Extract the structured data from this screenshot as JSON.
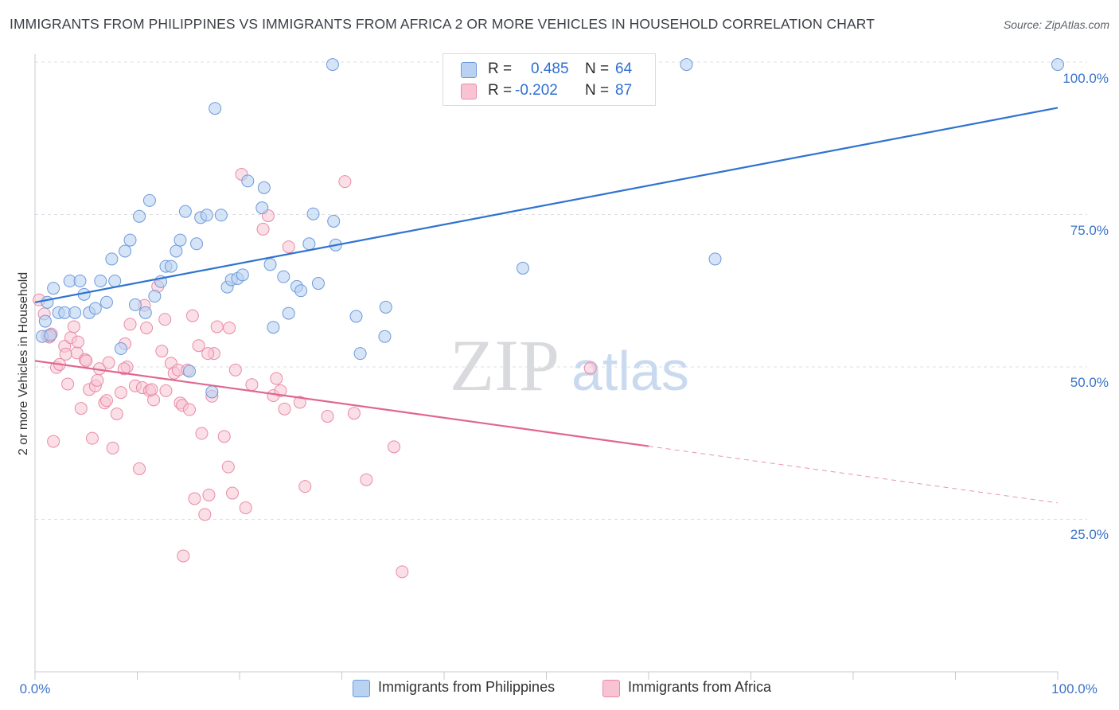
{
  "title": "IMMIGRANTS FROM PHILIPPINES VS IMMIGRANTS FROM AFRICA 2 OR MORE VEHICLES IN HOUSEHOLD CORRELATION CHART",
  "source": "Source: ZipAtlas.com",
  "watermark": {
    "zip": "ZIP",
    "atlas": "atlas"
  },
  "legend": {
    "philippines": {
      "r_label": "R =",
      "r_value": "0.485",
      "n_label": "N =",
      "n_value": "64"
    },
    "africa": {
      "r_label": "R =",
      "r_value": "-0.202",
      "n_label": "N =",
      "n_value": "87"
    }
  },
  "colors": {
    "philippines_fill": "#b9d2f2",
    "philippines_stroke": "#6e9ad8",
    "philippines_line": "#2f73d0",
    "africa_fill": "#f8c4d4",
    "africa_stroke": "#e88aa6",
    "africa_line": "#e0668f",
    "axis_label": "#3b73c8",
    "grid": "#dcdfe4"
  },
  "chart_data": {
    "type": "scatter",
    "title": "IMMIGRANTS FROM PHILIPPINES VS IMMIGRANTS FROM AFRICA 2 OR MORE VEHICLES IN HOUSEHOLD CORRELATION CHART",
    "xlabel": "",
    "ylabel": "2 or more Vehicles in Household",
    "xlim": [
      0,
      100
    ],
    "ylim": [
      0,
      105
    ],
    "x_tick_labels": [
      "0.0%",
      "100.0%"
    ],
    "y_ticks": [
      25,
      50,
      75,
      100
    ],
    "y_tick_labels": [
      "25.0%",
      "50.0%",
      "75.0%",
      "100.0%"
    ],
    "grid": "horizontal dashed",
    "legend_position": "top-center",
    "series": [
      {
        "name": "Immigrants from Philippines",
        "color": "#b9d2f2",
        "points": [
          [
            0.7,
            55.0
          ],
          [
            1.0,
            57.5
          ],
          [
            1.2,
            60.6
          ],
          [
            1.5,
            55.2
          ],
          [
            1.8,
            62.9
          ],
          [
            2.3,
            58.9
          ],
          [
            2.9,
            58.9
          ],
          [
            3.4,
            64.1
          ],
          [
            3.9,
            58.9
          ],
          [
            4.4,
            64.1
          ],
          [
            4.8,
            61.9
          ],
          [
            5.3,
            58.9
          ],
          [
            5.9,
            59.6
          ],
          [
            6.4,
            64.1
          ],
          [
            7.0,
            60.6
          ],
          [
            7.5,
            67.7
          ],
          [
            7.8,
            64.1
          ],
          [
            8.4,
            53.0
          ],
          [
            8.8,
            69.0
          ],
          [
            9.3,
            70.8
          ],
          [
            9.8,
            60.2
          ],
          [
            10.2,
            74.7
          ],
          [
            10.8,
            58.9
          ],
          [
            11.2,
            77.3
          ],
          [
            11.7,
            61.6
          ],
          [
            12.3,
            64.0
          ],
          [
            12.8,
            66.5
          ],
          [
            13.3,
            66.5
          ],
          [
            13.8,
            69.0
          ],
          [
            14.2,
            70.8
          ],
          [
            14.7,
            75.5
          ],
          [
            15.1,
            49.3
          ],
          [
            15.8,
            70.2
          ],
          [
            16.2,
            74.5
          ],
          [
            16.8,
            74.9
          ],
          [
            17.3,
            45.9
          ],
          [
            17.6,
            92.4
          ],
          [
            18.2,
            74.9
          ],
          [
            18.8,
            63.1
          ],
          [
            19.2,
            64.3
          ],
          [
            19.8,
            64.5
          ],
          [
            20.3,
            65.1
          ],
          [
            20.8,
            80.5
          ],
          [
            22.2,
            76.1
          ],
          [
            22.4,
            79.4
          ],
          [
            23.0,
            66.8
          ],
          [
            23.3,
            56.5
          ],
          [
            24.3,
            64.8
          ],
          [
            24.8,
            58.8
          ],
          [
            25.6,
            63.2
          ],
          [
            26.0,
            62.5
          ],
          [
            26.8,
            70.2
          ],
          [
            27.2,
            75.1
          ],
          [
            27.7,
            63.7
          ],
          [
            29.1,
            99.6
          ],
          [
            29.2,
            73.9
          ],
          [
            29.4,
            70.0
          ],
          [
            31.4,
            58.3
          ],
          [
            31.8,
            52.2
          ],
          [
            34.2,
            55.0
          ],
          [
            34.3,
            59.8
          ],
          [
            47.7,
            66.2
          ],
          [
            63.7,
            99.6
          ],
          [
            66.5,
            67.7
          ],
          [
            100.0,
            99.6
          ]
        ],
        "trend": {
          "x": [
            0,
            100
          ],
          "y": [
            60.6,
            92.5
          ]
        }
      },
      {
        "name": "Immigrants from Africa",
        "color": "#f8c4d4",
        "points": [
          [
            0.4,
            61.0
          ],
          [
            0.9,
            58.7
          ],
          [
            1.2,
            55.1
          ],
          [
            1.4,
            54.9
          ],
          [
            1.8,
            37.8
          ],
          [
            2.1,
            49.9
          ],
          [
            2.4,
            50.4
          ],
          [
            2.9,
            53.4
          ],
          [
            3.2,
            47.2
          ],
          [
            3.5,
            54.8
          ],
          [
            3.8,
            56.6
          ],
          [
            4.1,
            52.3
          ],
          [
            4.5,
            43.2
          ],
          [
            4.9,
            51.2
          ],
          [
            5.3,
            46.3
          ],
          [
            5.6,
            38.3
          ],
          [
            5.9,
            46.9
          ],
          [
            6.3,
            49.7
          ],
          [
            6.8,
            44.1
          ],
          [
            7.2,
            50.7
          ],
          [
            7.6,
            36.7
          ],
          [
            8.0,
            42.3
          ],
          [
            8.4,
            45.8
          ],
          [
            8.8,
            53.8
          ],
          [
            9.0,
            50.0
          ],
          [
            9.3,
            57.0
          ],
          [
            9.8,
            46.9
          ],
          [
            10.2,
            33.3
          ],
          [
            10.5,
            46.6
          ],
          [
            10.9,
            56.4
          ],
          [
            11.2,
            46.1
          ],
          [
            11.6,
            44.6
          ],
          [
            12.0,
            63.2
          ],
          [
            12.4,
            52.6
          ],
          [
            12.8,
            46.1
          ],
          [
            13.3,
            50.6
          ],
          [
            13.6,
            49.0
          ],
          [
            14.0,
            49.5
          ],
          [
            14.2,
            44.1
          ],
          [
            14.4,
            43.7
          ],
          [
            14.9,
            49.5
          ],
          [
            15.1,
            43.0
          ],
          [
            15.6,
            28.4
          ],
          [
            16.0,
            53.5
          ],
          [
            16.3,
            39.1
          ],
          [
            16.6,
            25.8
          ],
          [
            17.0,
            29.0
          ],
          [
            17.5,
            52.2
          ],
          [
            17.8,
            56.6
          ],
          [
            18.5,
            38.6
          ],
          [
            18.9,
            33.6
          ],
          [
            19.3,
            29.3
          ],
          [
            19.6,
            49.5
          ],
          [
            20.2,
            81.6
          ],
          [
            20.6,
            26.9
          ],
          [
            21.2,
            47.1
          ],
          [
            22.3,
            72.6
          ],
          [
            22.8,
            74.8
          ],
          [
            23.3,
            45.3
          ],
          [
            23.6,
            48.1
          ],
          [
            24.0,
            46.1
          ],
          [
            24.4,
            43.1
          ],
          [
            24.8,
            69.7
          ],
          [
            25.9,
            44.2
          ],
          [
            26.4,
            30.4
          ],
          [
            28.6,
            41.9
          ],
          [
            30.3,
            80.4
          ],
          [
            31.2,
            42.4
          ],
          [
            32.4,
            31.5
          ],
          [
            35.1,
            36.9
          ],
          [
            35.9,
            16.4
          ],
          [
            54.3,
            49.8
          ],
          [
            1.6,
            55.4
          ],
          [
            3.0,
            52.1
          ],
          [
            4.2,
            54.1
          ],
          [
            5.0,
            51.0
          ],
          [
            6.1,
            47.8
          ],
          [
            7.0,
            44.5
          ],
          [
            8.7,
            49.7
          ],
          [
            10.7,
            60.1
          ],
          [
            11.4,
            46.3
          ],
          [
            12.7,
            57.8
          ],
          [
            14.5,
            19.0
          ],
          [
            15.4,
            58.4
          ],
          [
            16.9,
            52.2
          ],
          [
            17.3,
            45.2
          ],
          [
            19.0,
            56.4
          ]
        ],
        "trend": {
          "x": [
            0,
            60
          ],
          "y": [
            51.0,
            37.0
          ]
        },
        "trend_extension": {
          "x": [
            60,
            100
          ],
          "y": [
            37.0,
            27.7
          ]
        }
      }
    ]
  }
}
